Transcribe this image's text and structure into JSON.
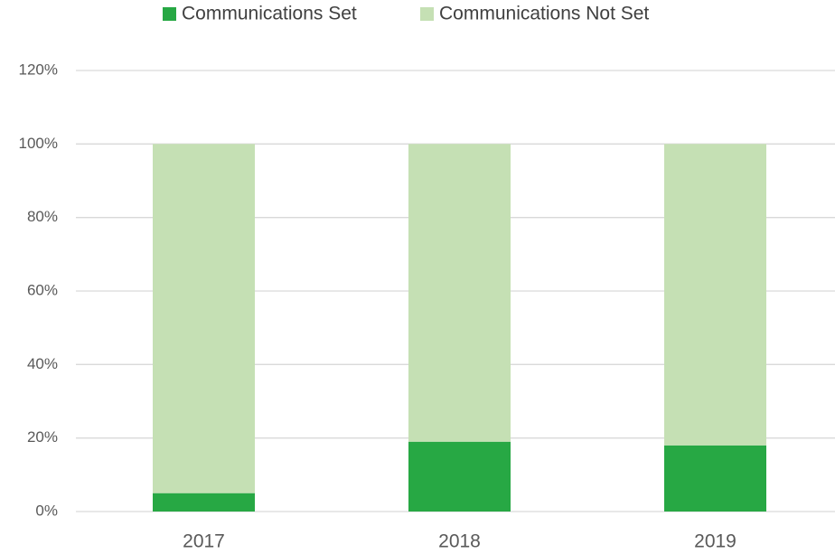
{
  "chart_data": {
    "type": "stacked_bar",
    "categories": [
      "2017",
      "2018",
      "2019"
    ],
    "series": [
      {
        "name": "Communications Set",
        "color": "#27a844",
        "values": [
          5,
          19,
          18
        ]
      },
      {
        "name": "Communications Not Set",
        "color": "#c5e0b4",
        "values": [
          95,
          81,
          82
        ]
      }
    ],
    "ylim": [
      0,
      120
    ],
    "yticks": [
      {
        "value": 0,
        "label": "0%"
      },
      {
        "value": 20,
        "label": "20%"
      },
      {
        "value": 40,
        "label": "40%"
      },
      {
        "value": 60,
        "label": "60%"
      },
      {
        "value": 80,
        "label": "80%"
      },
      {
        "value": 100,
        "label": "100%"
      },
      {
        "value": 120,
        "label": "120%"
      }
    ],
    "grid": true,
    "legend": "top"
  }
}
